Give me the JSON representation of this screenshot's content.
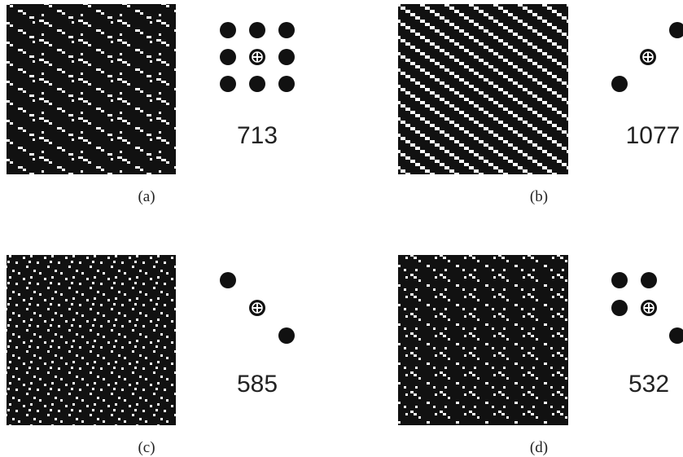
{
  "panels": [
    {
      "label": "(a)",
      "count": 713
    },
    {
      "label": "(b)",
      "count": 1077
    },
    {
      "label": "(c)",
      "count": 585
    },
    {
      "label": "(d)",
      "count": 532
    }
  ]
}
